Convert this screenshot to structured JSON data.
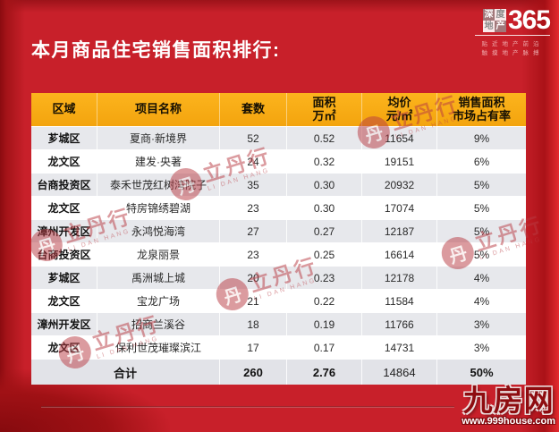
{
  "page": {
    "title": "本月商品住宅销售面积排行:",
    "background_color": "#c8202a",
    "header_color": "#f7a813"
  },
  "brand_logo": {
    "box_chars": [
      "深",
      "度",
      "地",
      "产"
    ],
    "number": "365",
    "slogan_line1": "贴近地产前沿",
    "slogan_line2": "触摸地产脉搏"
  },
  "watermark": {
    "circle_char": "丹",
    "text": "立丹行",
    "subtext": "LI DAN HANG"
  },
  "footer": {
    "site_name": "九房网",
    "site_url": "www.999house.com"
  },
  "table": {
    "headers": [
      {
        "label": "区域",
        "sub": ""
      },
      {
        "label": "项目名称",
        "sub": ""
      },
      {
        "label": "套数",
        "sub": ""
      },
      {
        "label": "面积",
        "sub": "万㎡"
      },
      {
        "label": "均价",
        "sub": "元/㎡"
      },
      {
        "label": "销售面积",
        "sub": "市场占有率"
      }
    ],
    "rows": [
      {
        "region": "芗城区",
        "project": "夏商·新境界",
        "units": "52",
        "area": "0.52",
        "price": "11654",
        "share": "9%"
      },
      {
        "region": "龙文区",
        "project": "建发·央著",
        "units": "24",
        "area": "0.32",
        "price": "19151",
        "share": "6%"
      },
      {
        "region": "台商投资区",
        "project": "泰禾世茂红树湾院子",
        "units": "35",
        "area": "0.30",
        "price": "20932",
        "share": "5%"
      },
      {
        "region": "龙文区",
        "project": "特房锦绣碧湖",
        "units": "23",
        "area": "0.30",
        "price": "17074",
        "share": "5%"
      },
      {
        "region": "漳州开发区",
        "project": "永鸿悦海湾",
        "units": "27",
        "area": "0.27",
        "price": "12187",
        "share": "5%"
      },
      {
        "region": "台商投资区",
        "project": "龙泉丽景",
        "units": "23",
        "area": "0.25",
        "price": "16614",
        "share": "5%"
      },
      {
        "region": "芗城区",
        "project": "禹洲城上城",
        "units": "20",
        "area": "0.23",
        "price": "12178",
        "share": "4%"
      },
      {
        "region": "龙文区",
        "project": "宝龙广场",
        "units": "21",
        "area": "0.22",
        "price": "11584",
        "share": "4%"
      },
      {
        "region": "漳州开发区",
        "project": "招商兰溪谷",
        "units": "18",
        "area": "0.19",
        "price": "11766",
        "share": "3%"
      },
      {
        "region": "龙文区",
        "project": "保利世茂璀璨滨江",
        "units": "17",
        "area": "0.17",
        "price": "14731",
        "share": "3%"
      }
    ],
    "total": {
      "label": "合计",
      "units": "260",
      "area": "2.76",
      "price": "14864",
      "share": "50%"
    }
  },
  "chart_data": {
    "type": "table",
    "title": "本月商品住宅销售面积排行",
    "columns": [
      "区域",
      "项目名称",
      "套数",
      "面积(万㎡)",
      "均价(元/㎡)",
      "销售面积市场占有率"
    ],
    "rows": [
      [
        "芗城区",
        "夏商·新境界",
        52,
        0.52,
        11654,
        "9%"
      ],
      [
        "龙文区",
        "建发·央著",
        24,
        0.32,
        19151,
        "6%"
      ],
      [
        "台商投资区",
        "泰禾世茂红树湾院子",
        35,
        0.3,
        20932,
        "5%"
      ],
      [
        "龙文区",
        "特房锦绣碧湖",
        23,
        0.3,
        17074,
        "5%"
      ],
      [
        "漳州开发区",
        "永鸿悦海湾",
        27,
        0.27,
        12187,
        "5%"
      ],
      [
        "台商投资区",
        "龙泉丽景",
        23,
        0.25,
        16614,
        "5%"
      ],
      [
        "芗城区",
        "禹洲城上城",
        20,
        0.23,
        12178,
        "4%"
      ],
      [
        "龙文区",
        "宝龙广场",
        21,
        0.22,
        11584,
        "4%"
      ],
      [
        "漳州开发区",
        "招商兰溪谷",
        18,
        0.19,
        11766,
        "3%"
      ],
      [
        "龙文区",
        "保利世茂璀璨滨江",
        17,
        0.17,
        14731,
        "3%"
      ]
    ],
    "total_row": [
      "合计",
      "",
      260,
      2.76,
      14864,
      "50%"
    ]
  }
}
